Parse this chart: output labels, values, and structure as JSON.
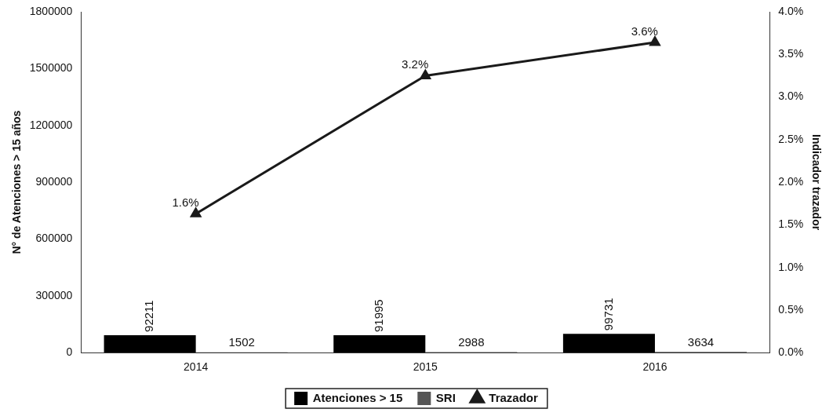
{
  "chart_data": {
    "type": "bar",
    "categories": [
      "2014",
      "2015",
      "2016"
    ],
    "ylabel": "N° de Atenciones > 15 años",
    "y2label": "Indicador trazador",
    "ylim": [
      0,
      1800000
    ],
    "yticks": [
      0,
      300000,
      600000,
      900000,
      1200000,
      1500000,
      1800000
    ],
    "y2lim": [
      0,
      4
    ],
    "y2ticks": [
      {
        "value": 0,
        "label": "0.0%"
      },
      {
        "value": 0.5,
        "label": "0.5%"
      },
      {
        "value": 1,
        "label": "1.0%"
      },
      {
        "value": 1.5,
        "label": "1.5%"
      },
      {
        "value": 2,
        "label": "2.0%"
      },
      {
        "value": 2.5,
        "label": "2.5%"
      },
      {
        "value": 3,
        "label": "3.0%"
      },
      {
        "value": 3.5,
        "label": "3.5%"
      },
      {
        "value": 4,
        "label": "4.0%"
      }
    ],
    "series": [
      {
        "name": "Atenciones > 15",
        "color": "#000000",
        "values": [
          92211,
          91995,
          99731
        ],
        "value_labels": [
          "92211",
          "91995",
          "99731"
        ]
      },
      {
        "name": "SRI",
        "color": "#555555",
        "values": [
          1502,
          2988,
          3634
        ],
        "value_labels": [
          "1502",
          "2988",
          "3634"
        ]
      },
      {
        "name": "Trazador",
        "type": "line",
        "axis": "y2",
        "color": "#1a1a1a",
        "values": [
          1.63,
          3.25,
          3.64
        ],
        "value_labels": [
          "1.6%",
          "3.2%",
          "3.6%"
        ],
        "marker": "triangle"
      }
    ],
    "grid": false,
    "legend": "bottom"
  }
}
